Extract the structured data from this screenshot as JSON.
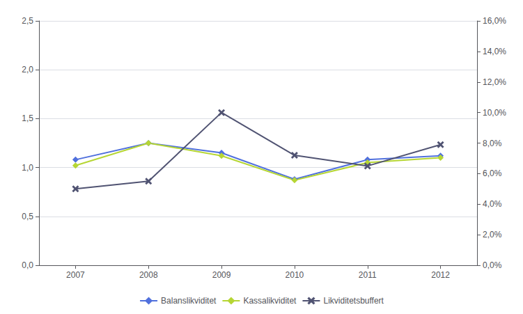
{
  "chart_data": {
    "type": "line",
    "x": [
      2007,
      2008,
      2009,
      2010,
      2011,
      2012
    ],
    "xlim": [
      2006.5,
      2012.5
    ],
    "xticks": [
      2007,
      2008,
      2009,
      2010,
      2011,
      2012
    ],
    "ylim": [
      0.0,
      2.5
    ],
    "yticks": [
      {
        "value": 0.0,
        "label": "0,0"
      },
      {
        "value": 0.5,
        "label": "0,5"
      },
      {
        "value": 1.0,
        "label": "1,0"
      },
      {
        "value": 1.5,
        "label": "1,5"
      },
      {
        "value": 2.0,
        "label": "2,0"
      },
      {
        "value": 2.5,
        "label": "2,5"
      }
    ],
    "y2lim": [
      0.0,
      0.16
    ],
    "y2ticks": [
      {
        "value": 0.0,
        "label": "0,0%"
      },
      {
        "value": 0.02,
        "label": "2,0%"
      },
      {
        "value": 0.04,
        "label": "4,0%"
      },
      {
        "value": 0.06,
        "label": "6,0%"
      },
      {
        "value": 0.08,
        "label": "8,0%"
      },
      {
        "value": 0.1,
        "label": "10,0%"
      },
      {
        "value": 0.12,
        "label": "12,0%"
      },
      {
        "value": 0.14,
        "label": "14,0%"
      },
      {
        "value": 0.16,
        "label": "16,0%"
      }
    ],
    "series": [
      {
        "name": "Balanslikviditet",
        "values": [
          1.08,
          1.25,
          1.15,
          0.88,
          1.08,
          1.12
        ],
        "marker": "diamond"
      },
      {
        "name": "Kassalikviditet",
        "values": [
          1.02,
          1.25,
          1.12,
          0.87,
          1.05,
          1.1
        ],
        "marker": "diamond"
      },
      {
        "name": "Likviditetsbuffert",
        "values": [
          0.05,
          0.055,
          0.1,
          0.072,
          0.065,
          0.079
        ],
        "marker": "x",
        "axis": "y2"
      }
    ],
    "grid": true,
    "legend": "bottom"
  }
}
